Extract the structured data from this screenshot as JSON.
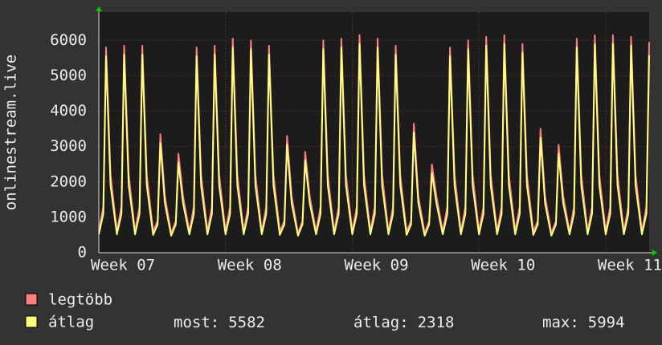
{
  "chart_data": {
    "type": "line",
    "ylabel": "onlinestream.live",
    "xlim": [
      0,
      30.4
    ],
    "xticks": [
      {
        "value": 0,
        "label": "Week 07"
      },
      {
        "value": 7,
        "label": "Week 08"
      },
      {
        "value": 14,
        "label": "Week 09"
      },
      {
        "value": 21,
        "label": "Week 10"
      },
      {
        "value": 28,
        "label": "Week 11"
      }
    ],
    "ylim": [
      0,
      6800
    ],
    "yticks": [
      0,
      1000,
      2000,
      3000,
      4000,
      5000,
      6000
    ],
    "grid": true,
    "legend": "bottom",
    "x": [
      0,
      0.25,
      0.4,
      0.65,
      1,
      1.25,
      1.4,
      1.65,
      2,
      2.25,
      2.4,
      2.65,
      3,
      3.25,
      3.4,
      3.65,
      4,
      4.25,
      4.4,
      4.65,
      5,
      5.25,
      5.4,
      5.65,
      6,
      6.25,
      6.4,
      6.65,
      7,
      7.25,
      7.4,
      7.65,
      8,
      8.25,
      8.4,
      8.65,
      9,
      9.25,
      9.4,
      9.65,
      10,
      10.25,
      10.4,
      10.65,
      11,
      11.25,
      11.4,
      11.65,
      12,
      12.25,
      12.4,
      12.65,
      13,
      13.25,
      13.4,
      13.65,
      14,
      14.25,
      14.4,
      14.65,
      15,
      15.25,
      15.4,
      15.65,
      16,
      16.25,
      16.4,
      16.65,
      17,
      17.25,
      17.4,
      17.65,
      18,
      18.25,
      18.4,
      18.65,
      19,
      19.25,
      19.4,
      19.65,
      20,
      20.25,
      20.4,
      20.65,
      21,
      21.25,
      21.4,
      21.65,
      22,
      22.25,
      22.4,
      22.65,
      23,
      23.25,
      23.4,
      23.65,
      24,
      24.25,
      24.4,
      24.65,
      25,
      25.25,
      25.4,
      25.65,
      26,
      26.25,
      26.4,
      26.65,
      27,
      27.25,
      27.4,
      27.65,
      28,
      28.25,
      28.4,
      28.65,
      29,
      29.25,
      29.4,
      29.65,
      30,
      30.25,
      30.4
    ],
    "series": [
      {
        "name": "legtöbb",
        "color": "#ff7f7f",
        "values": [
          600,
          1300,
          5800,
          2200,
          600,
          1300,
          5850,
          2200,
          600,
          1300,
          5850,
          2200,
          600,
          900,
          3350,
          1600,
          550,
          900,
          2800,
          1600,
          600,
          1300,
          5800,
          2200,
          600,
          1300,
          5850,
          2200,
          600,
          1300,
          6050,
          2200,
          600,
          1300,
          6000,
          2200,
          600,
          1300,
          5850,
          2200,
          600,
          900,
          3300,
          1600,
          550,
          900,
          2850,
          1600,
          600,
          1300,
          6000,
          2200,
          600,
          1300,
          6050,
          2200,
          600,
          1300,
          6150,
          2200,
          600,
          1300,
          6050,
          2200,
          600,
          1300,
          5850,
          2200,
          600,
          900,
          3650,
          1600,
          550,
          900,
          2500,
          1600,
          600,
          1300,
          5800,
          2200,
          600,
          1300,
          6000,
          2200,
          600,
          1300,
          6100,
          2200,
          600,
          1300,
          6150,
          2200,
          600,
          1300,
          5900,
          2200,
          600,
          900,
          3500,
          1600,
          550,
          900,
          3050,
          1600,
          600,
          1300,
          6050,
          2200,
          600,
          1300,
          6150,
          2200,
          600,
          1300,
          6150,
          2200,
          600,
          1300,
          6100,
          2200,
          600,
          1300,
          5950
        ]
      },
      {
        "name": "átlag",
        "color": "#ffff80",
        "values": [
          520,
          1100,
          5550,
          1900,
          520,
          1100,
          5600,
          1900,
          520,
          1100,
          5600,
          1900,
          500,
          800,
          3100,
          1400,
          480,
          800,
          2550,
          1400,
          520,
          1100,
          5550,
          1900,
          520,
          1100,
          5600,
          1900,
          520,
          1100,
          5800,
          1900,
          520,
          1100,
          5750,
          1900,
          520,
          1100,
          5600,
          1900,
          500,
          800,
          3050,
          1400,
          480,
          800,
          2600,
          1400,
          520,
          1100,
          5750,
          1900,
          520,
          1100,
          5800,
          1900,
          520,
          1100,
          5900,
          1900,
          520,
          1100,
          5800,
          1900,
          520,
          1100,
          5600,
          1900,
          500,
          800,
          3400,
          1400,
          480,
          800,
          2250,
          1400,
          520,
          1100,
          5550,
          1900,
          520,
          1100,
          5750,
          1900,
          520,
          1100,
          5850,
          1900,
          520,
          1100,
          5900,
          1900,
          520,
          1100,
          5650,
          1900,
          500,
          800,
          3250,
          1400,
          480,
          800,
          2800,
          1400,
          520,
          1100,
          5800,
          1900,
          520,
          1100,
          5900,
          1900,
          520,
          1100,
          5900,
          1900,
          520,
          1100,
          5850,
          1900,
          520,
          1100,
          5582
        ]
      }
    ],
    "stats": [
      {
        "label": "most:",
        "value": 5582
      },
      {
        "label": "átlag:",
        "value": 2318
      },
      {
        "label": "max:",
        "value": 5994
      }
    ]
  }
}
